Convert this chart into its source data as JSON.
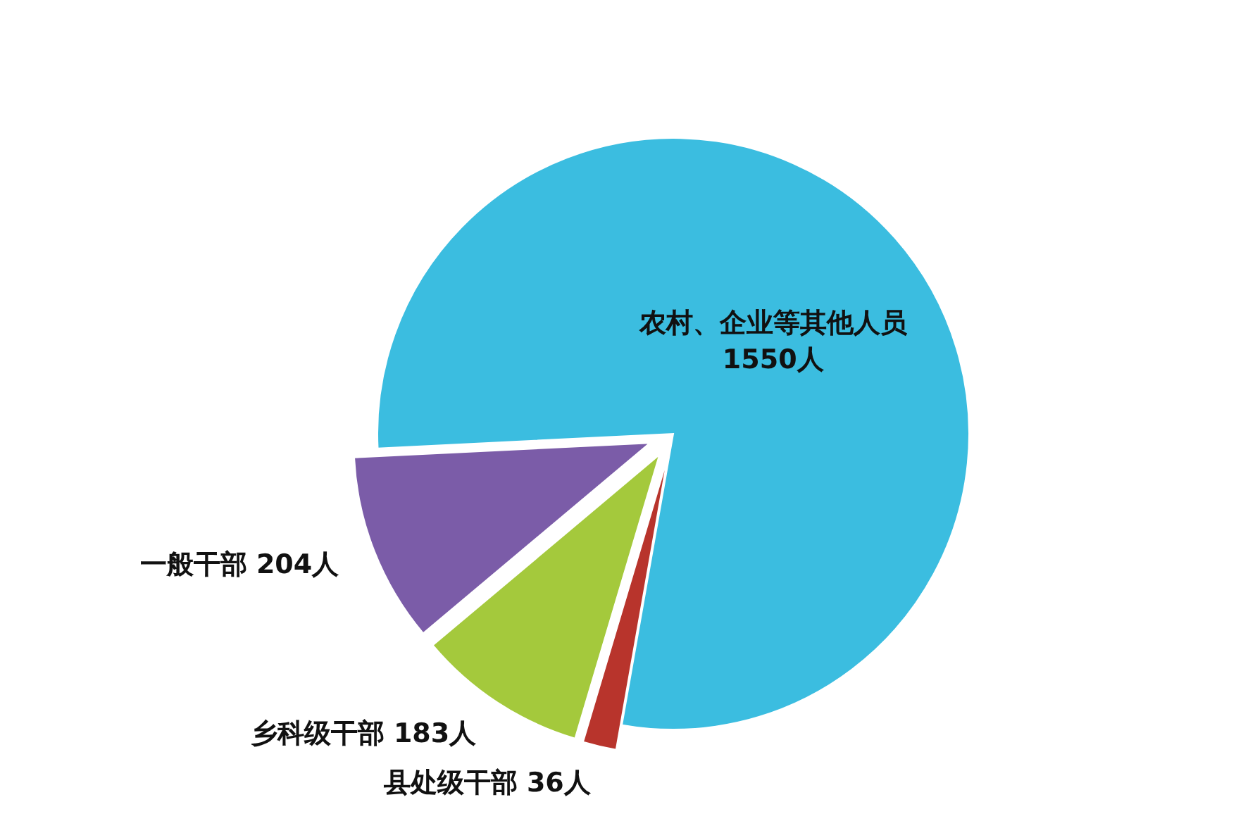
{
  "chart_data": {
    "type": "pie",
    "categories": [
      "农村、企业等其他人员",
      "县处级干部",
      "乡科级干部",
      "一般干部"
    ],
    "values": [
      1550,
      36,
      183,
      204
    ],
    "value_labels": [
      "1550人",
      "36人",
      "183人",
      "204人"
    ],
    "colors": [
      "#3bbde0",
      "#b8342c",
      "#a4c93c",
      "#7b5ca8"
    ]
  }
}
